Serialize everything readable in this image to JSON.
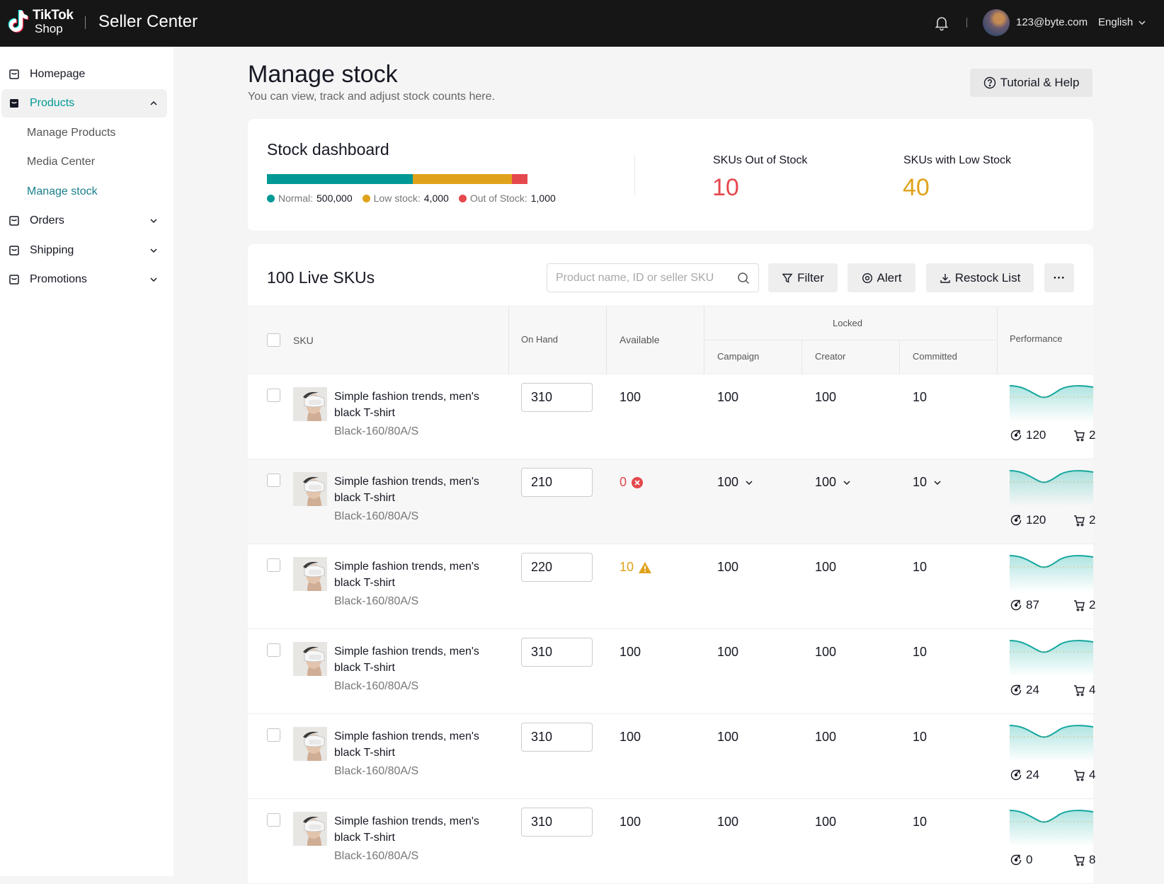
{
  "header": {
    "logo_line1": "TikTok",
    "logo_line2": "Shop",
    "app_title": "Seller Center",
    "user_email": "123@byte.com",
    "language": "English"
  },
  "sidebar": {
    "items": [
      {
        "label": "Homepage",
        "icon": "store-icon"
      },
      {
        "label": "Products",
        "icon": "bag-icon",
        "active": true,
        "expanded": true
      },
      {
        "label": "Orders",
        "icon": "orders-icon"
      },
      {
        "label": "Shipping",
        "icon": "shipping-icon"
      },
      {
        "label": "Promotions",
        "icon": "promotions-icon"
      }
    ],
    "sub_items": [
      "Manage Products",
      "Media Center",
      "Manage stock"
    ]
  },
  "page": {
    "title": "Manage stock",
    "subtitle": "You can view, track and adjust stock counts here.",
    "help_label": "Tutorial & Help"
  },
  "dashboard": {
    "title": "Stock dashboard",
    "legend": [
      {
        "label": "Normal:",
        "value": "500,000",
        "color": "#009995"
      },
      {
        "label": "Low stock:",
        "value": "4,000",
        "color": "#E0A21A"
      },
      {
        "label": "Out of Stock:",
        "value": "1,000",
        "color": "#E5484D"
      }
    ],
    "bar_fractions": [
      0.56,
      0.38,
      0.06
    ],
    "kpis": [
      {
        "label": "SKUs Out of Stock",
        "value": "10",
        "color": "#E5484D"
      },
      {
        "label": "SKUs with Low Stock",
        "value": "40",
        "color": "#E0A21A"
      }
    ]
  },
  "table": {
    "title": "100 Live SKUs",
    "search_placeholder": "Product name, ID or seller SKU",
    "buttons": {
      "filter": "Filter",
      "alert": "Alert",
      "restock": "Restock List",
      "more": "···"
    },
    "headers": {
      "sku": "SKU",
      "on_hand": "On Hand",
      "available": "Available",
      "locked": "Locked",
      "campaign": "Campaign",
      "creator": "Creator",
      "committed": "Committed",
      "performance": "Performance"
    },
    "rows": [
      {
        "name": "Simple fashion trends, men's black T-shirt",
        "variant": "Black-160/80A/S",
        "on_hand": "310",
        "available": "100",
        "status": "normal",
        "campaign": "100",
        "creator": "100",
        "committed": "10",
        "dropdowns": false,
        "views": "120",
        "cart": "2"
      },
      {
        "name": "Simple fashion trends, men's black T-shirt",
        "variant": "Black-160/80A/S",
        "on_hand": "210",
        "available": "0",
        "status": "out",
        "campaign": "100",
        "creator": "100",
        "committed": "10",
        "dropdowns": true,
        "views": "120",
        "cart": "2"
      },
      {
        "name": "Simple fashion trends, men's black T-shirt",
        "variant": "Black-160/80A/S",
        "on_hand": "220",
        "available": "10",
        "status": "low",
        "campaign": "100",
        "creator": "100",
        "committed": "10",
        "dropdowns": false,
        "views": "87",
        "cart": "2"
      },
      {
        "name": "Simple fashion trends, men's black T-shirt",
        "variant": "Black-160/80A/S",
        "on_hand": "310",
        "available": "100",
        "status": "normal",
        "campaign": "100",
        "creator": "100",
        "committed": "10",
        "dropdowns": false,
        "views": "24",
        "cart": "4"
      },
      {
        "name": "Simple fashion trends, men's black T-shirt",
        "variant": "Black-160/80A/S",
        "on_hand": "310",
        "available": "100",
        "status": "normal",
        "campaign": "100",
        "creator": "100",
        "committed": "10",
        "dropdowns": false,
        "views": "24",
        "cart": "4"
      },
      {
        "name": "Simple fashion trends, men's black T-shirt",
        "variant": "Black-160/80A/S",
        "on_hand": "310",
        "available": "100",
        "status": "normal",
        "campaign": "100",
        "creator": "100",
        "committed": "10",
        "dropdowns": false,
        "views": "0",
        "cart": "8"
      }
    ]
  }
}
